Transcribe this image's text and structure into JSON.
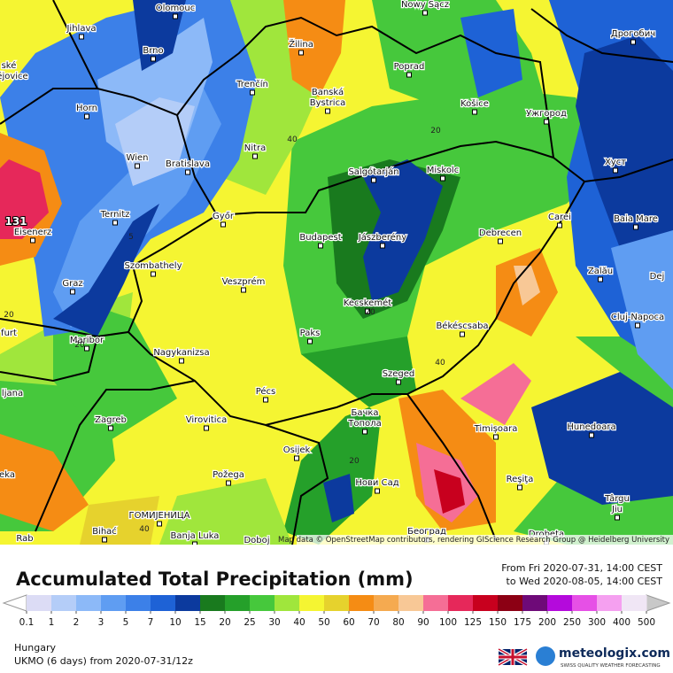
{
  "map": {
    "attribution": "Map data © OpenStreetMap contributors, rendering GIScience Research Group @ Heidelberg University",
    "places": [
      "Olomouc",
      "Jihlava",
      "Brno",
      "Žilina",
      "Nowy Sącz",
      "Poprad",
      "Дрогобич",
      "Trenčín",
      "Banská",
      "Bystrica",
      "Košice",
      "Ужгород",
      "Horn",
      "Nitra",
      "Wien",
      "Bratislava",
      "Salgótarján",
      "Miskolc",
      "Хуст",
      "Ternitz",
      "Győr",
      "Carei",
      "Baia Mare",
      "Eisenerz",
      "Budapest",
      "Jászberény",
      "Debrecen",
      "Szombathely",
      "Veszprém",
      "Zalău",
      "Graz",
      "Kecskemét",
      "Cluj-Napoca",
      "Paks",
      "Békéscsaba",
      "Maribor",
      "Nagykanizsa",
      "Szeged",
      "Pécs",
      "Бачка",
      "Топола",
      "Timișoara",
      "Hunedoara",
      "Zagreb",
      "Virovitica",
      "Osijek",
      "Požega",
      "Нови Сад",
      "Reşiţa",
      "Târgu",
      "Jiu",
      "ГОМИЈЕНИЦА",
      "Banja Luka",
      "Bihać",
      "Београд",
      "Drobeta",
      "Doboj",
      "Rab",
      "ské",
      "ějovice",
      "furt",
      "ljana",
      "eka",
      "Dej"
    ],
    "contour_labels": [
      "40",
      "20",
      "5",
      "20",
      "20",
      "40",
      "20",
      "40",
      "20"
    ],
    "max_label": "131"
  },
  "header": {
    "title": "Accumulated Total Precipitation (mm)",
    "from": "From Fri 2020-07-31, 14:00 CEST",
    "to": "to Wed 2020-08-05, 14:00 CEST"
  },
  "colorbar": {
    "ticks": [
      0.1,
      1,
      2,
      3,
      5,
      7,
      10,
      15,
      20,
      25,
      30,
      40,
      50,
      60,
      70,
      80,
      90,
      100,
      125,
      150,
      175,
      200,
      250,
      300,
      400,
      500
    ],
    "colors": [
      "#dcdcf5",
      "#b4cdf8",
      "#8cb9f8",
      "#5f9df2",
      "#3c80e8",
      "#1e62d6",
      "#0c3a9e",
      "#197a1e",
      "#25a02a",
      "#46c83c",
      "#a0e63c",
      "#f5f532",
      "#e6d22d",
      "#f58c14",
      "#f5aa50",
      "#f8c896",
      "#f56e96",
      "#e6285a",
      "#c8001e",
      "#8c0014",
      "#6e0a78",
      "#b40adc",
      "#e650e6",
      "#f5a0f0",
      "#f0e6f5"
    ],
    "low_color": "#ffffff",
    "high_color": "#c8c8c8"
  },
  "footer": {
    "region": "Hungary",
    "model": "UKMO (6 days)  from  2020-07-31/12z",
    "brand": "meteologix.com",
    "tagline": "SWISS QUALITY WEATHER FORECASTING"
  }
}
